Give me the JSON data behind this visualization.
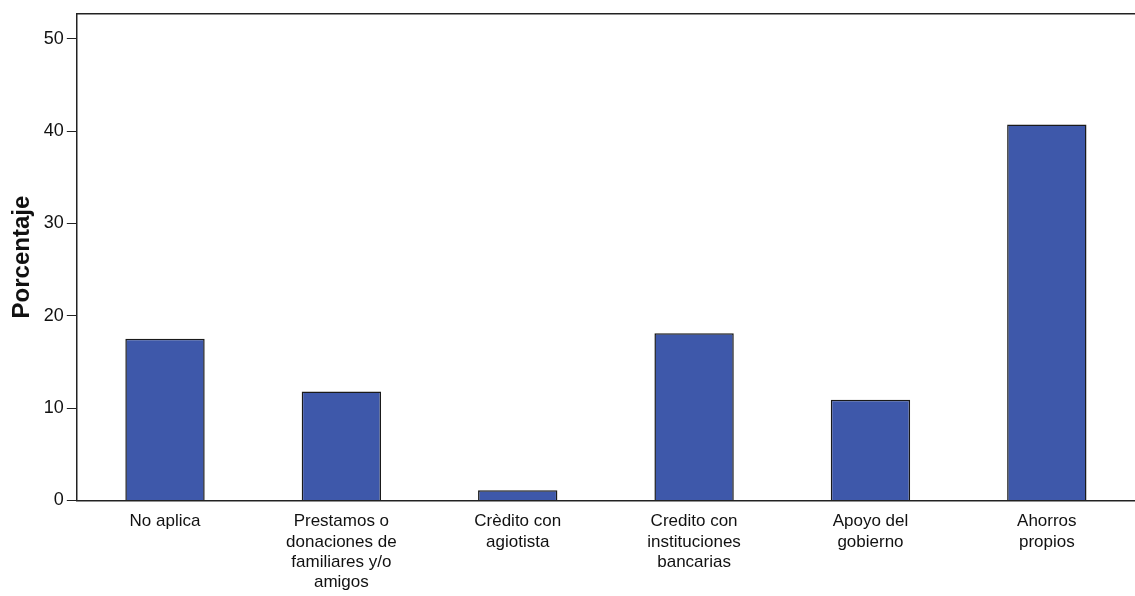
{
  "chart_data": {
    "type": "bar",
    "ylabel": "Porcentaje",
    "categories": [
      "No aplica",
      "Prestamos o donaciones de familiares y/o amigos",
      "Crèdito con agiotista",
      "Credito con instituciones bancarias",
      "Apoyo del gobierno",
      "Ahorros propios"
    ],
    "values": [
      17.5,
      11.8,
      1.1,
      18.1,
      10.9,
      40.7
    ],
    "color": "#3e58aa",
    "ylim": [
      0,
      52.7
    ],
    "yticks": [
      0,
      10,
      20,
      30,
      40,
      50
    ],
    "grid": false,
    "legend": false
  }
}
